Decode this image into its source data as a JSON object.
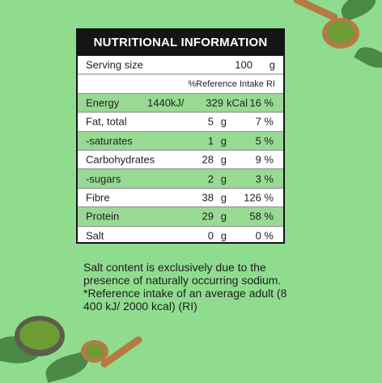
{
  "title": "NUTRITIONAL INFORMATION",
  "serving": {
    "label": "Serving size",
    "qty": "100",
    "unit": "g"
  },
  "ref_header": "%Reference Intake RI",
  "rows": [
    {
      "name": "Energy",
      "kj": "1440kJ/",
      "qty": "329",
      "unit": "kCal",
      "pct": "16 %"
    },
    {
      "name": "Fat, total",
      "qty": "5",
      "unit": "g",
      "pct": "7 %"
    },
    {
      "name": "-saturates",
      "qty": "1",
      "unit": "g",
      "pct": "5 %"
    },
    {
      "name": "Carbohydrates",
      "qty": "28",
      "unit": "g",
      "pct": "9 %"
    },
    {
      "name": "-sugars",
      "qty": "2",
      "unit": "g",
      "pct": "3 %"
    },
    {
      "name": "Fibre",
      "qty": "38",
      "unit": "g",
      "pct": "126 %"
    },
    {
      "name": "Protein",
      "qty": "29",
      "unit": "g",
      "pct": "58 %"
    },
    {
      "name": "Salt",
      "qty": "0",
      "unit": "g",
      "pct": "0 %"
    }
  ],
  "notes": [
    "Salt content is exclusively due to the presence of naturally occurring sodium.",
    "*Reference intake of an average adult (8 400 kJ/ 2000 kcal) (RI)"
  ],
  "colors": {
    "background": "#8fdc8f",
    "row_alt": "#98da93",
    "header": "#151515"
  },
  "decor_icons": [
    "matcha-spoon-icon",
    "leaf-icon",
    "matcha-bowl-icon"
  ]
}
